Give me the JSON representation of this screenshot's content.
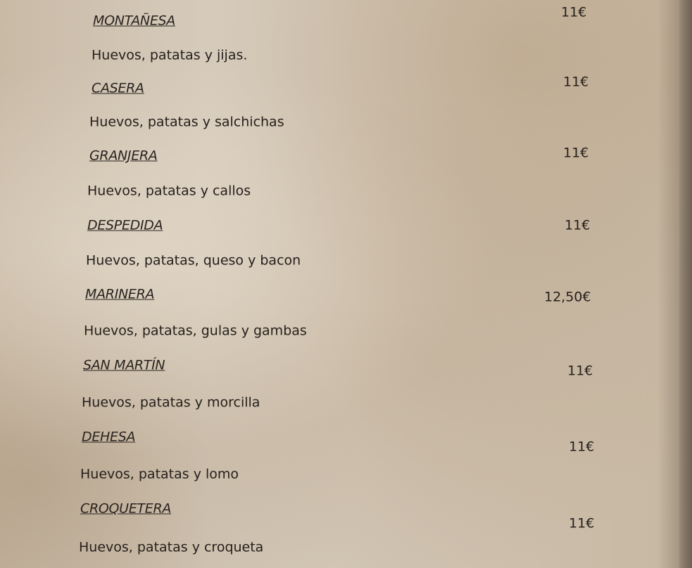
{
  "menu": {
    "items": [
      {
        "name": "MONTAÑESA",
        "description": "Huevos, patatas y jijas.",
        "price": "11€"
      },
      {
        "name": "CASERA",
        "description": "Huevos, patatas y salchichas",
        "price": "11€"
      },
      {
        "name": "GRANJERA",
        "description": "Huevos, patatas y callos",
        "price": "11€"
      },
      {
        "name": "DESPEDIDA",
        "description": "Huevos, patatas, queso y bacon",
        "price": "11€"
      },
      {
        "name": "MARINERA",
        "description": "Huevos, patatas, gulas y gambas",
        "price": "12,50€"
      },
      {
        "name": "SAN MARTÍN",
        "description": "Huevos, patatas y morcilla",
        "price": "11€"
      },
      {
        "name": "DEHESA",
        "description": "Huevos, patatas y lomo",
        "price": "11€"
      },
      {
        "name": "CROQUETERA",
        "description": "Huevos, patatas y croqueta",
        "price": "11€"
      }
    ]
  }
}
